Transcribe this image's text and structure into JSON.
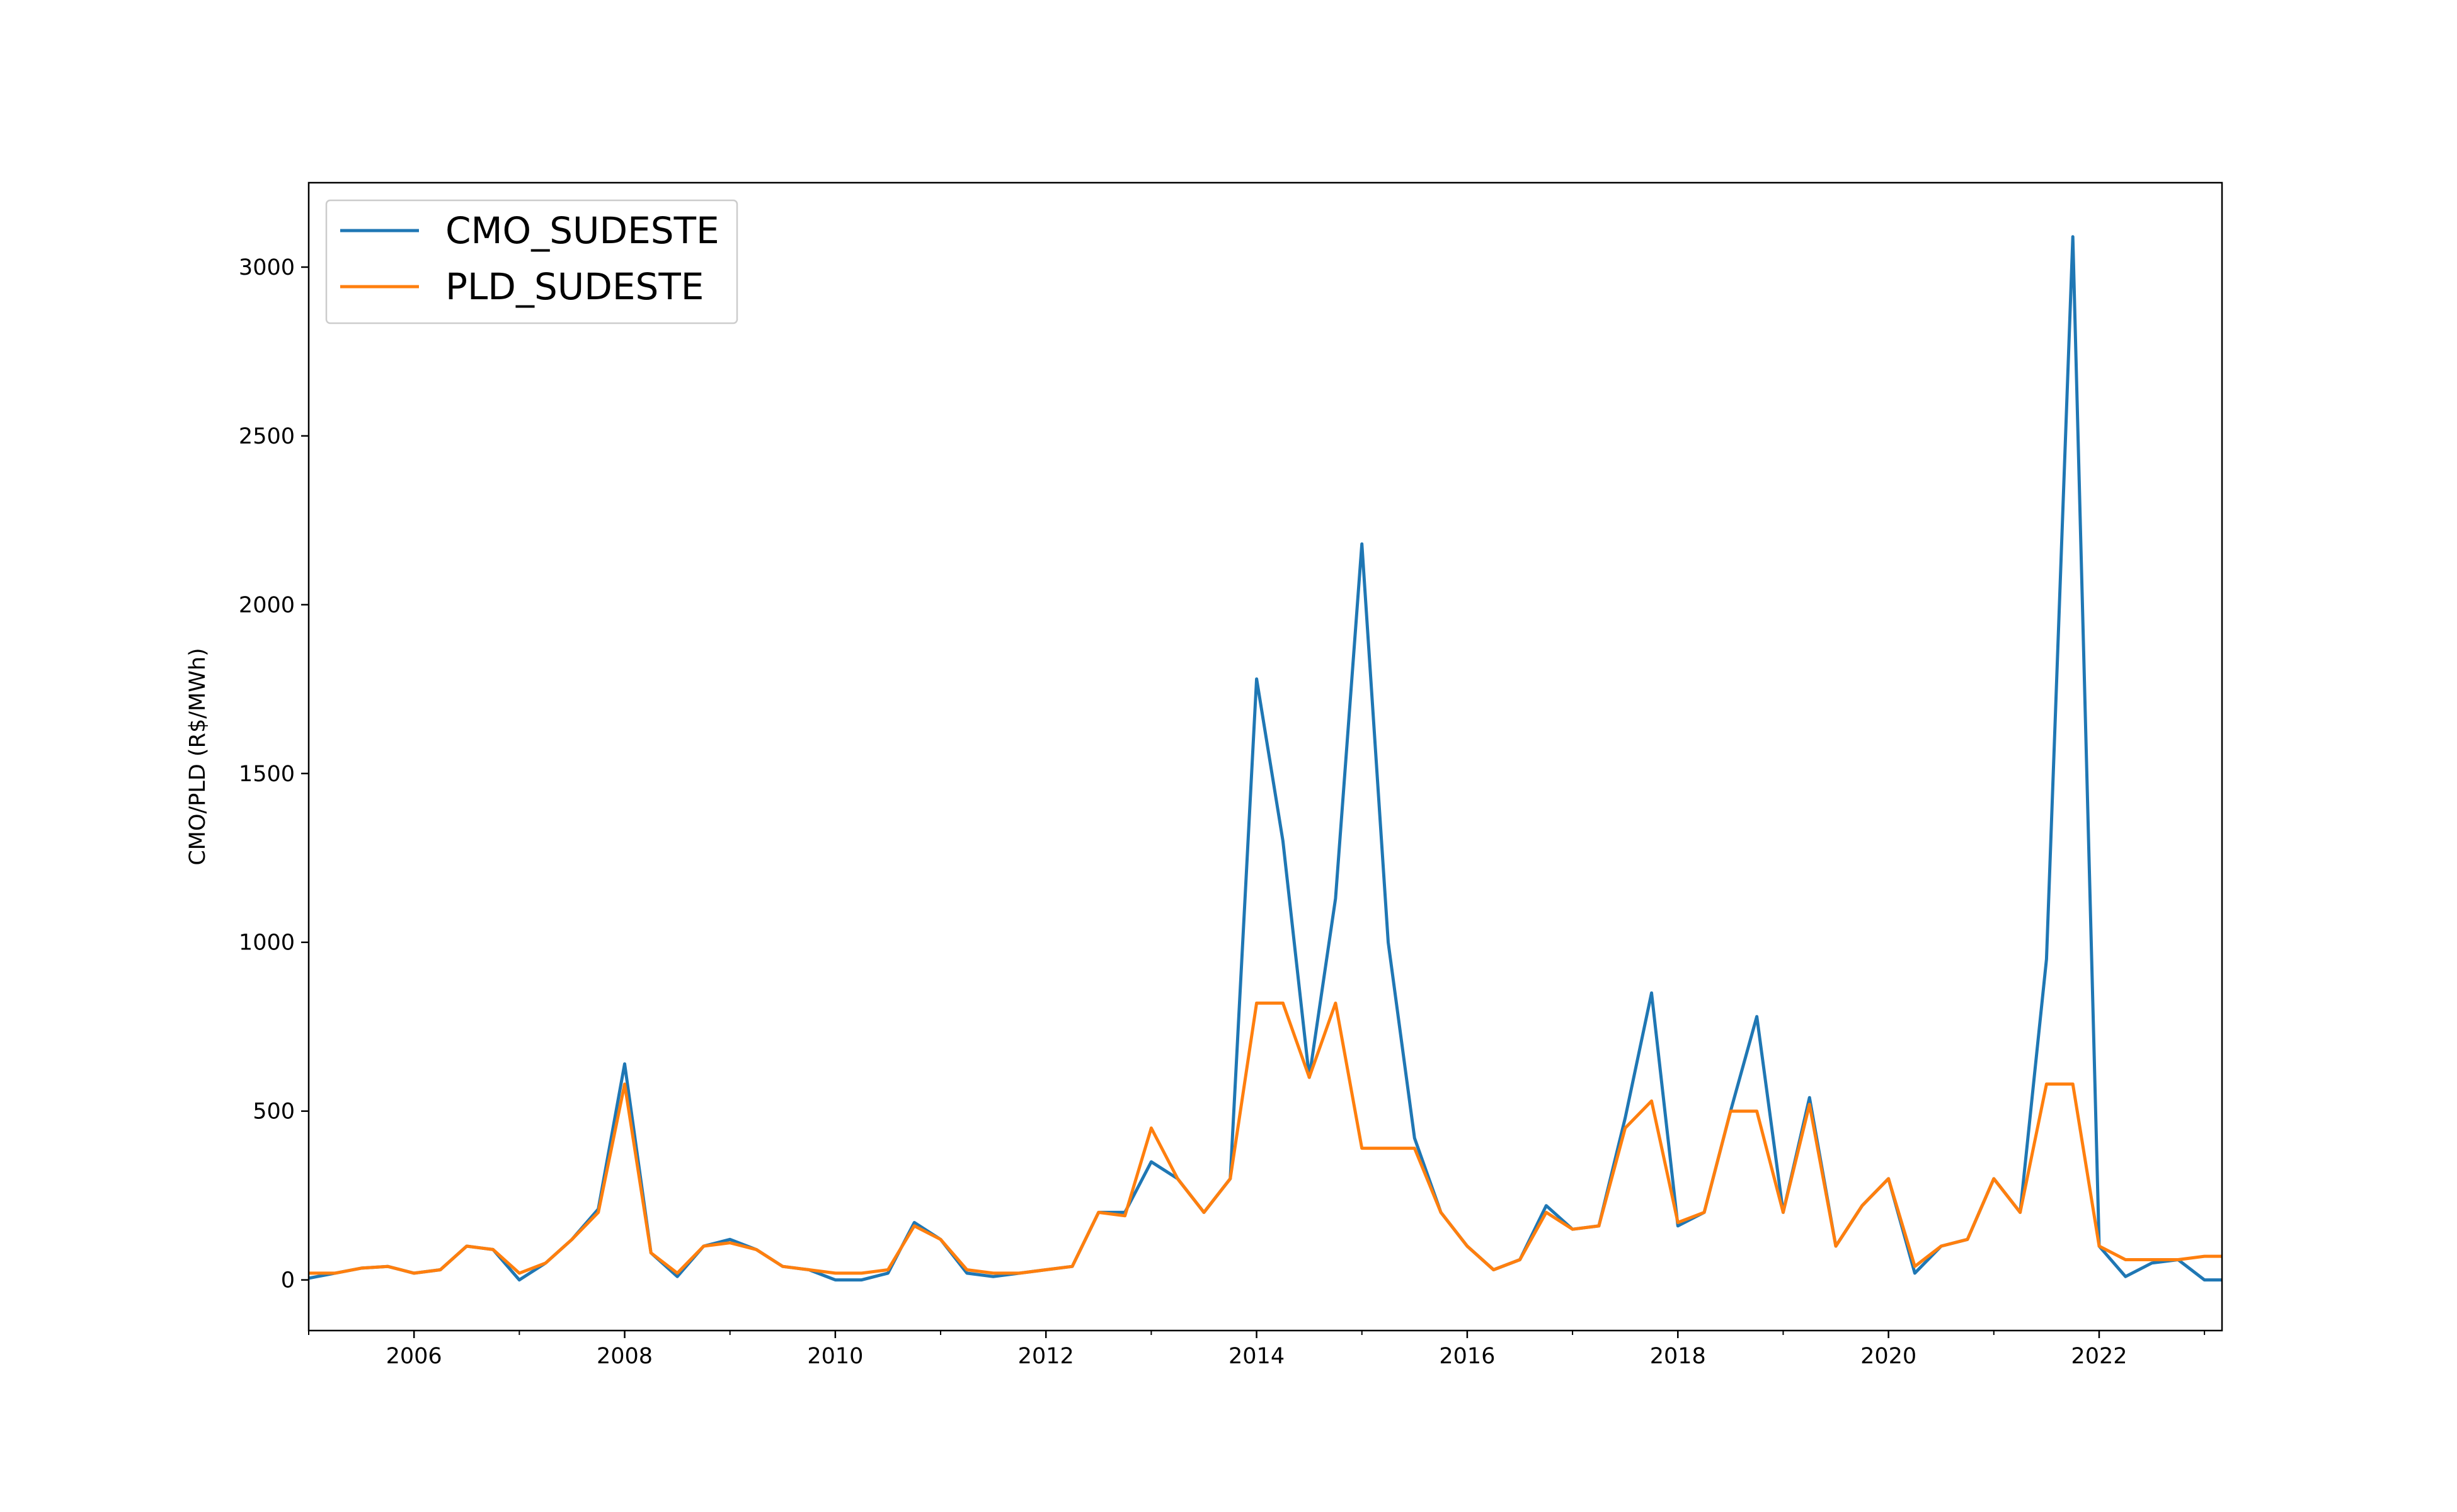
{
  "chart_data": {
    "type": "line",
    "title": "",
    "xlabel": "",
    "ylabel": "CMO/PLD (R$/MWh)",
    "x_range": [
      "2005-01",
      "2023-03"
    ],
    "ylim": [
      -150,
      3250
    ],
    "y_ticks": [
      0,
      500,
      1000,
      1500,
      2000,
      2500,
      3000
    ],
    "x_ticks": [
      "2006",
      "2008",
      "2010",
      "2012",
      "2014",
      "2016",
      "2018",
      "2020",
      "2022"
    ],
    "grid": false,
    "legend_position": "top-left",
    "x": [
      "2005-01",
      "2005-04",
      "2005-07",
      "2005-10",
      "2006-01",
      "2006-04",
      "2006-07",
      "2006-10",
      "2007-01",
      "2007-04",
      "2007-07",
      "2007-10",
      "2008-01",
      "2008-04",
      "2008-07",
      "2008-10",
      "2009-01",
      "2009-04",
      "2009-07",
      "2009-10",
      "2010-01",
      "2010-04",
      "2010-07",
      "2010-10",
      "2011-01",
      "2011-04",
      "2011-07",
      "2011-10",
      "2012-01",
      "2012-04",
      "2012-07",
      "2012-10",
      "2013-01",
      "2013-04",
      "2013-07",
      "2013-10",
      "2014-01",
      "2014-04",
      "2014-07",
      "2014-10",
      "2015-01",
      "2015-04",
      "2015-07",
      "2015-10",
      "2016-01",
      "2016-04",
      "2016-07",
      "2016-10",
      "2017-01",
      "2017-04",
      "2017-07",
      "2017-10",
      "2018-01",
      "2018-04",
      "2018-07",
      "2018-10",
      "2019-01",
      "2019-04",
      "2019-07",
      "2019-10",
      "2020-01",
      "2020-04",
      "2020-07",
      "2020-10",
      "2021-01",
      "2021-04",
      "2021-07",
      "2021-10",
      "2022-01",
      "2022-04",
      "2022-07",
      "2022-10",
      "2023-01",
      "2023-03"
    ],
    "series": [
      {
        "name": "CMO_SUDESTE",
        "color": "#1f77b4",
        "values": [
          5,
          20,
          35,
          40,
          20,
          30,
          100,
          90,
          0,
          50,
          120,
          210,
          640,
          80,
          10,
          100,
          120,
          90,
          40,
          30,
          0,
          0,
          20,
          170,
          120,
          20,
          10,
          20,
          30,
          40,
          200,
          200,
          350,
          300,
          200,
          300,
          1780,
          1300,
          600,
          1130,
          2180,
          1000,
          420,
          200,
          100,
          30,
          60,
          220,
          150,
          160,
          480,
          850,
          160,
          200,
          500,
          780,
          200,
          540,
          100,
          220,
          300,
          20,
          100,
          120,
          300,
          200,
          950,
          3090,
          100,
          10,
          50,
          60,
          0,
          0
        ],
        "stroke_width": 5
      },
      {
        "name": "PLD_SUDESTE",
        "color": "#ff7f0e",
        "values": [
          20,
          20,
          35,
          40,
          20,
          30,
          100,
          90,
          20,
          50,
          120,
          200,
          580,
          80,
          20,
          100,
          110,
          90,
          40,
          30,
          20,
          20,
          30,
          160,
          120,
          30,
          20,
          20,
          30,
          40,
          200,
          190,
          450,
          300,
          200,
          300,
          820,
          820,
          600,
          820,
          390,
          390,
          390,
          200,
          100,
          30,
          60,
          200,
          150,
          160,
          450,
          530,
          170,
          200,
          500,
          500,
          200,
          520,
          100,
          220,
          300,
          40,
          100,
          120,
          300,
          200,
          580,
          580,
          100,
          60,
          60,
          60,
          70,
          70
        ],
        "stroke_width": 5
      }
    ]
  }
}
